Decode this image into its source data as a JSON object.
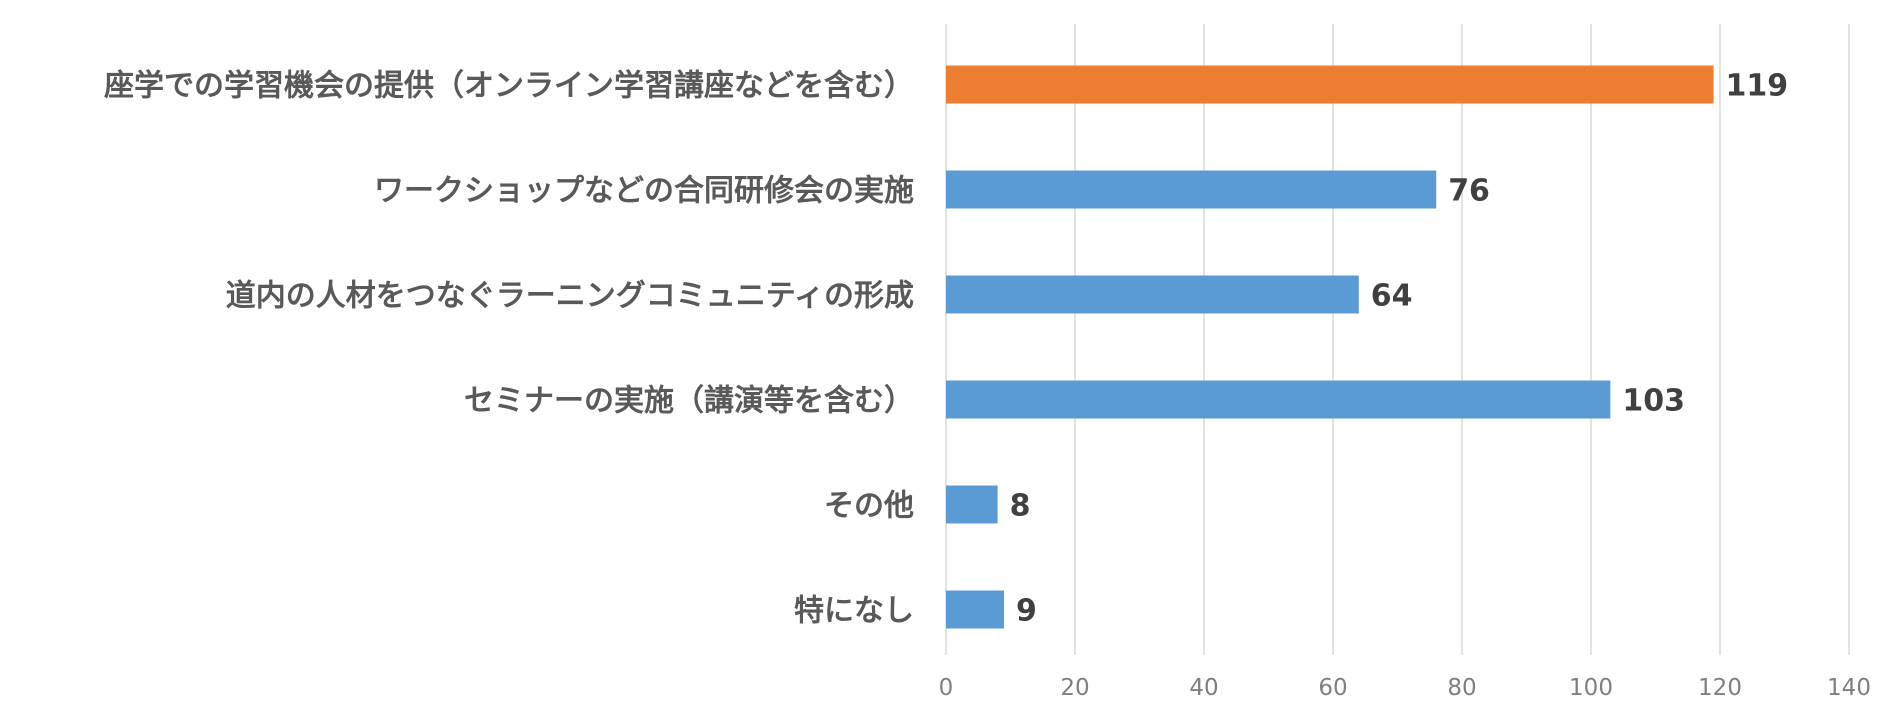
{
  "chart_data": {
    "type": "bar",
    "orientation": "horizontal",
    "title": "",
    "xlabel": "",
    "ylabel": "",
    "categories": [
      "座学での学習機会の提供（オンライン学習講座などを含む）",
      "ワークショップなどの合同研修会の実施",
      "道内の人材をつなぐラーニングコミュニティの形成",
      "セミナーの実施（講演等を含む）",
      "その他",
      "特になし"
    ],
    "values": [
      119,
      76,
      64,
      103,
      8,
      9
    ],
    "value_labels": [
      "119",
      "76",
      "64",
      "103",
      "8",
      "9"
    ],
    "highlight_index": 0,
    "xlim": [
      0,
      140
    ],
    "xticks": [
      0,
      20,
      40,
      60,
      80,
      100,
      120,
      140
    ],
    "xtick_labels": [
      "0",
      "20",
      "40",
      "60",
      "80",
      "100",
      "120",
      "140"
    ],
    "grid": "vertical",
    "legend": "none",
    "colors": {
      "default_bar": "#5b9bd5",
      "highlight_bar": "#ed7d31",
      "gridline": "#d9d9d9",
      "category_text": "#595959",
      "value_text": "#404040",
      "tick_text": "#7f7f7f"
    }
  }
}
